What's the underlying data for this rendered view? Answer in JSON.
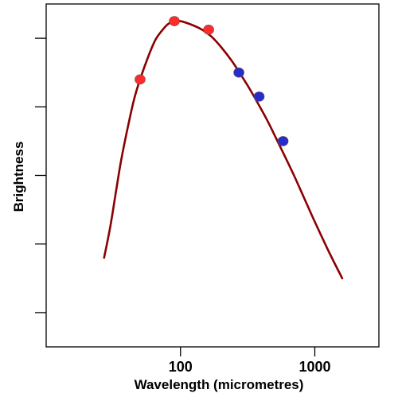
{
  "chart_data": {
    "type": "scatter",
    "xlabel": "Wavelength (micrometres)",
    "ylabel": "Brightness",
    "x_scale": "log",
    "xlim": [
      10,
      3000
    ],
    "ylim": [
      0,
      10
    ],
    "x_ticks": [
      100,
      1000
    ],
    "x_tick_labels": [
      "100",
      "1000"
    ],
    "y_ticks": [
      1,
      3,
      5,
      7,
      9
    ],
    "y_tick_labels": [
      "",
      "",
      "",
      "",
      ""
    ],
    "grid": false,
    "series": [
      {
        "kind": "curve",
        "color": "#8b0000",
        "x": [
          27,
          30,
          33,
          36,
          40,
          45,
          50,
          58,
          65,
          72,
          80,
          90,
          100,
          120,
          145,
          170,
          200,
          240,
          280,
          330,
          390,
          450,
          520,
          600,
          700,
          820,
          960,
          1100,
          1300,
          1600
        ],
        "y": [
          2.6,
          3.5,
          4.5,
          5.4,
          6.3,
          7.2,
          7.8,
          8.5,
          8.95,
          9.2,
          9.4,
          9.5,
          9.5,
          9.4,
          9.25,
          9.05,
          8.75,
          8.35,
          7.95,
          7.5,
          7.0,
          6.55,
          6.05,
          5.55,
          5.0,
          4.4,
          3.8,
          3.3,
          2.7,
          2.0
        ]
      },
      {
        "kind": "points",
        "color": "#ff2a2a",
        "x": [
          50,
          90,
          162
        ],
        "y": [
          7.8,
          9.5,
          9.25
        ]
      },
      {
        "kind": "points",
        "color": "#2b2bcc",
        "x": [
          272,
          385,
          580
        ],
        "y": [
          8.0,
          7.3,
          6.0
        ]
      }
    ]
  }
}
